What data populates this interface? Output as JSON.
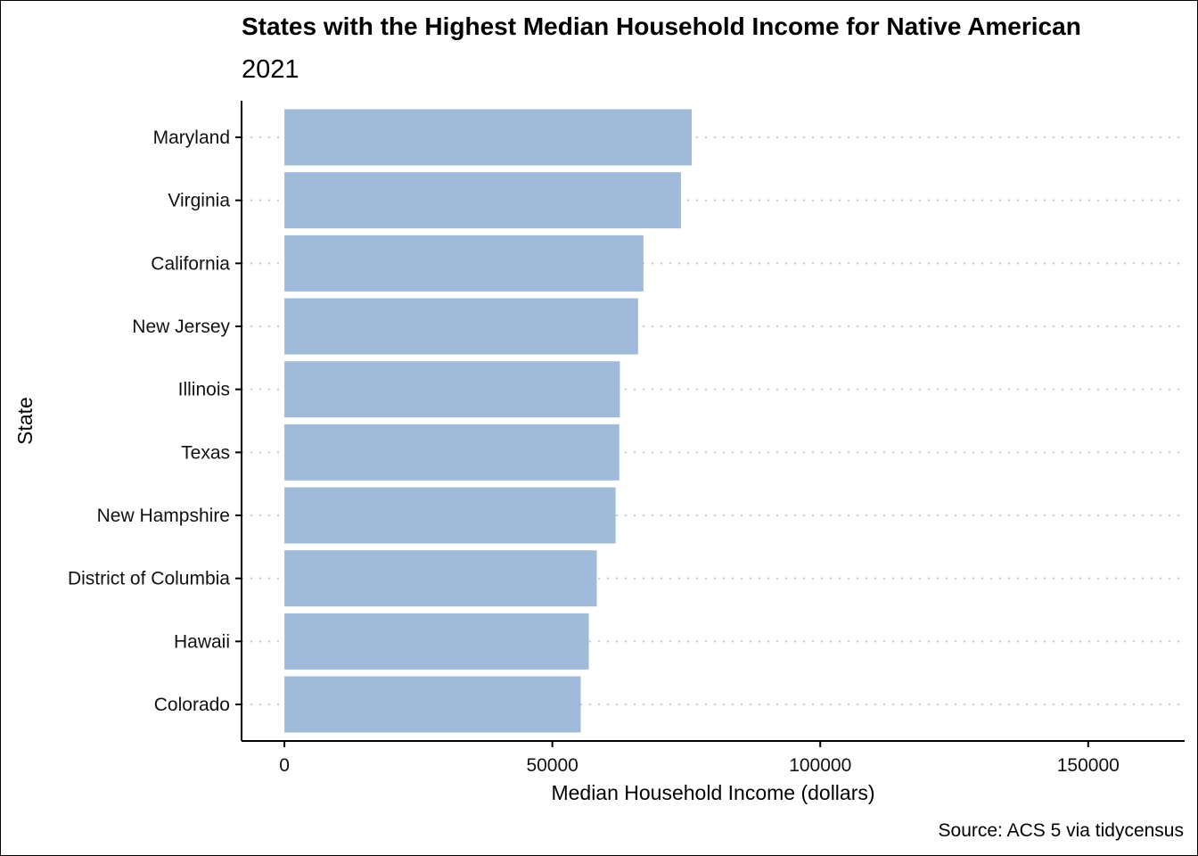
{
  "chart_data": {
    "type": "bar",
    "orientation": "horizontal",
    "title": "States with the Highest Median Household Income for Native American",
    "subtitle": "2021",
    "xlabel": "Median Household Income (dollars)",
    "ylabel": "State",
    "caption": "Source: ACS 5 via tidycensus",
    "categories": [
      "Maryland",
      "Virginia",
      "California",
      "New Jersey",
      "Illinois",
      "Texas",
      "New Hampshire",
      "District of Columbia",
      "Hawaii",
      "Colorado"
    ],
    "values": [
      76000,
      74000,
      67000,
      66000,
      62600,
      62500,
      61800,
      58300,
      56800,
      55300
    ],
    "xlim": [
      -8000,
      168000
    ],
    "xticks": [
      0,
      50000,
      100000,
      150000
    ],
    "xtick_labels": [
      "0",
      "50000",
      "100000",
      "150000"
    ],
    "grid": "dotted horizontal",
    "bar_color": "#9fbbd9",
    "grid_color": "#c8c8c8"
  }
}
